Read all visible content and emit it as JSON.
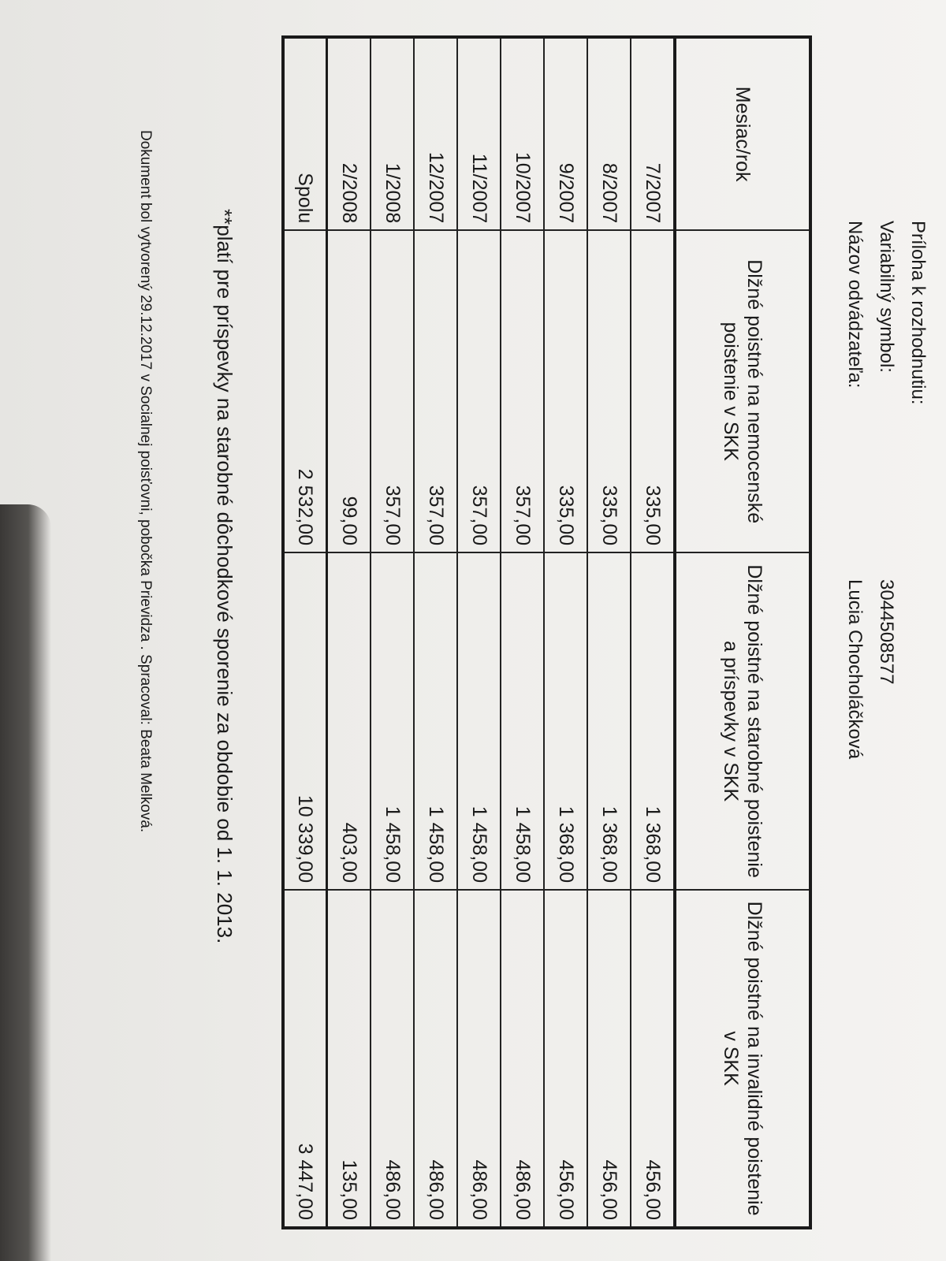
{
  "header": {
    "line0_label": "Príloha k rozhodnutiu:",
    "variable_symbol_label": "Variabilný symbol:",
    "variable_symbol_value": "3044508577",
    "payer_name_label": "Názov  odvádzateľa:",
    "payer_name_value": "Lucia Chocholáčková"
  },
  "table": {
    "columns": [
      "Mesiac/rok",
      "Dlžné poistné na nemocenské poistenie v SKK",
      "Dlžné poistné na starobné poistenie a príspevky v SKK",
      "Dlžné poistné na invalidné poistenie v SKK"
    ],
    "rows": [
      [
        "7/2007",
        "335,00",
        "1 368,00",
        "456,00"
      ],
      [
        "8/2007",
        "335,00",
        "1 368,00",
        "456,00"
      ],
      [
        "9/2007",
        "335,00",
        "1 368,00",
        "456,00"
      ],
      [
        "10/2007",
        "357,00",
        "1 458,00",
        "486,00"
      ],
      [
        "11/2007",
        "357,00",
        "1 458,00",
        "486,00"
      ],
      [
        "12/2007",
        "357,00",
        "1 458,00",
        "486,00"
      ],
      [
        "1/2008",
        "357,00",
        "1 458,00",
        "486,00"
      ],
      [
        "2/2008",
        "99,00",
        "403,00",
        "135,00"
      ]
    ],
    "total": [
      "Spolu",
      "2 532,00",
      "10 339,00",
      "3 447,00"
    ]
  },
  "footnote": "**platí pre príspevky na starobné dôchodkové sporenie za obdobie od 1. 1. 2013.",
  "footer": "Dokument bol vytvorený 29.12.2017 v Socialnej poisťovni, pobočka Prievidza . Spracoval: Beata Melková."
}
